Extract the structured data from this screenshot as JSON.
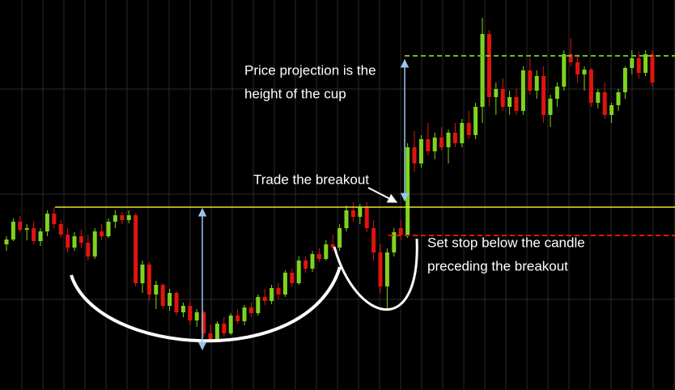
{
  "chart_data": {
    "type": "candlestick",
    "ylim": [
      0,
      482
    ],
    "up_color": "#7fd320",
    "down_color": "#e0140f",
    "open": [
      180,
      186,
      208,
      198,
      200,
      184,
      196,
      218,
      205,
      192,
      176,
      190,
      182,
      165,
      196,
      190,
      208,
      216,
      210,
      216,
      132,
      155,
      118,
      130,
      104,
      120,
      96,
      104,
      86,
      96,
      70,
      62,
      82,
      70,
      92,
      85,
      102,
      95,
      115,
      110,
      126,
      118,
      145,
      132,
      160,
      150,
      168,
      162,
      180,
      176,
      200,
      222,
      214,
      226,
      200,
      170,
      128,
      170,
      200,
      192,
      300,
      280,
      310,
      295,
      312,
      300,
      318,
      305,
      330,
      315,
      350,
      440,
      362,
      372,
      350,
      362,
      345,
      395,
      370,
      388,
      340,
      360,
      375,
      415,
      405,
      390,
      396,
      355,
      368,
      340,
      352,
      368,
      398,
      410,
      392,
      415
    ],
    "high": [
      190,
      212,
      215,
      205,
      208,
      200,
      222,
      226,
      210,
      200,
      195,
      198,
      192,
      200,
      205,
      212,
      222,
      220,
      222,
      218,
      160,
      158,
      135,
      132,
      125,
      122,
      108,
      110,
      100,
      98,
      80,
      85,
      90,
      95,
      100,
      105,
      108,
      118,
      125,
      130,
      132,
      148,
      150,
      165,
      165,
      172,
      175,
      185,
      192,
      205,
      228,
      232,
      230,
      232,
      210,
      180,
      175,
      200,
      210,
      305,
      320,
      315,
      330,
      318,
      325,
      322,
      330,
      335,
      345,
      355,
      460,
      445,
      380,
      385,
      370,
      372,
      400,
      410,
      395,
      400,
      365,
      380,
      420,
      435,
      415,
      400,
      398,
      372,
      380,
      355,
      372,
      400,
      420,
      418,
      420,
      420
    ],
    "low": [
      172,
      184,
      195,
      185,
      180,
      178,
      190,
      200,
      188,
      170,
      172,
      175,
      160,
      162,
      185,
      188,
      200,
      205,
      206,
      128,
      120,
      110,
      100,
      100,
      98,
      92,
      90,
      80,
      78,
      65,
      58,
      60,
      66,
      68,
      82,
      80,
      90,
      92,
      105,
      106,
      112,
      115,
      128,
      130,
      145,
      146,
      158,
      160,
      172,
      172,
      196,
      208,
      205,
      195,
      160,
      120,
      100,
      165,
      185,
      188,
      270,
      275,
      290,
      285,
      296,
      280,
      300,
      300,
      310,
      310,
      330,
      350,
      340,
      345,
      340,
      340,
      340,
      365,
      360,
      330,
      325,
      350,
      370,
      400,
      380,
      370,
      350,
      348,
      335,
      330,
      345,
      360,
      390,
      385,
      388,
      375
    ],
    "close": [
      186,
      208,
      198,
      200,
      184,
      196,
      218,
      205,
      192,
      176,
      190,
      182,
      165,
      196,
      190,
      208,
      216,
      210,
      216,
      132,
      155,
      118,
      130,
      104,
      120,
      96,
      104,
      86,
      96,
      70,
      62,
      82,
      70,
      92,
      85,
      102,
      95,
      115,
      110,
      126,
      118,
      145,
      132,
      160,
      150,
      168,
      162,
      180,
      176,
      200,
      222,
      214,
      226,
      200,
      170,
      128,
      170,
      195,
      192,
      300,
      280,
      310,
      295,
      312,
      300,
      318,
      305,
      330,
      315,
      350,
      440,
      362,
      372,
      350,
      362,
      345,
      395,
      370,
      388,
      340,
      360,
      375,
      415,
      405,
      390,
      396,
      355,
      368,
      340,
      352,
      368,
      398,
      410,
      392,
      415,
      380
    ],
    "annotations": [
      "Price projection is the",
      "height of the cup",
      "Trade the breakout",
      "Set stop below the candle",
      "preceding the breakout"
    ]
  }
}
